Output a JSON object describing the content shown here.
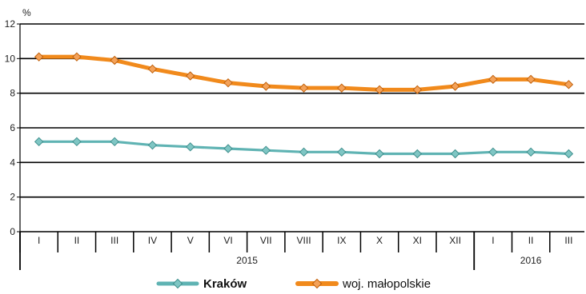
{
  "chart_data": {
    "type": "line",
    "unit_label": "%",
    "ylim": [
      0,
      12
    ],
    "yticks": [
      "0",
      "2",
      "4",
      "6",
      "8",
      "10",
      "12"
    ],
    "grid": true,
    "categories": [
      "I",
      "II",
      "III",
      "IV",
      "V",
      "VI",
      "VII",
      "VIII",
      "IX",
      "X",
      "XI",
      "XII",
      "I",
      "II",
      "III"
    ],
    "years": [
      {
        "label": "2015",
        "from": 0,
        "to": 11
      },
      {
        "label": "2016",
        "from": 12,
        "to": 14
      }
    ],
    "legend_position": "bottom",
    "series": [
      {
        "name": "Kraków",
        "color": "#5fb3b3",
        "marker_fill": "#7fc6c4",
        "bold_label": true,
        "values": [
          5.2,
          5.2,
          5.2,
          5.0,
          4.9,
          4.8,
          4.7,
          4.6,
          4.6,
          4.5,
          4.5,
          4.5,
          4.6,
          4.6,
          4.5
        ]
      },
      {
        "name": "woj. małopolskie",
        "color": "#f18a1c",
        "marker_fill": "#f4a259",
        "bold_label": false,
        "values": [
          10.1,
          10.1,
          9.9,
          9.4,
          9.0,
          8.6,
          8.4,
          8.3,
          8.3,
          8.2,
          8.2,
          8.4,
          8.8,
          8.8,
          8.5
        ]
      }
    ]
  }
}
